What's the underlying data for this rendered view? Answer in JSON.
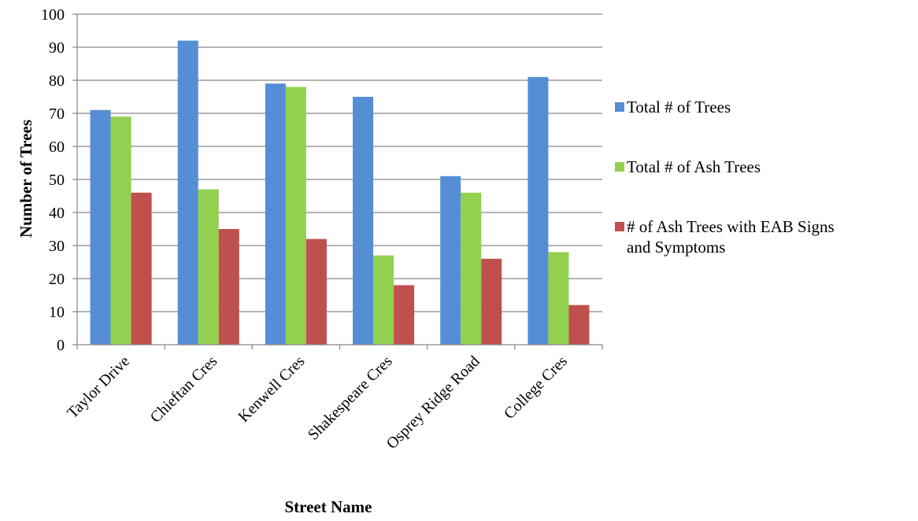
{
  "chart_data": {
    "type": "bar",
    "title": "",
    "xlabel": "Street Name",
    "ylabel": "Number of Trees",
    "ylim": [
      0,
      100
    ],
    "yticks": [
      0,
      10,
      20,
      30,
      40,
      50,
      60,
      70,
      80,
      90,
      100
    ],
    "grid": true,
    "legend_position": "right",
    "categories": [
      "Taylor Drive",
      "Chieftan Cres",
      "Kenwell Cres",
      "Shakespeare Cres",
      "Osprey Ridge Road",
      "College Cres"
    ],
    "series": [
      {
        "name": "Total # of Trees",
        "color": "#558ED5",
        "values": [
          71,
          92,
          79,
          75,
          51,
          81
        ]
      },
      {
        "name": "Total # of Ash Trees",
        "color": "#92D050",
        "values": [
          69,
          47,
          78,
          27,
          46,
          28
        ]
      },
      {
        "name": "# of Ash  Trees with EAB Signs and Symptoms",
        "legend_lines": [
          "# of Ash  Trees with EAB Signs",
          "and Symptoms"
        ],
        "color": "#C0504D",
        "values": [
          46,
          35,
          32,
          18,
          26,
          12
        ]
      }
    ]
  }
}
